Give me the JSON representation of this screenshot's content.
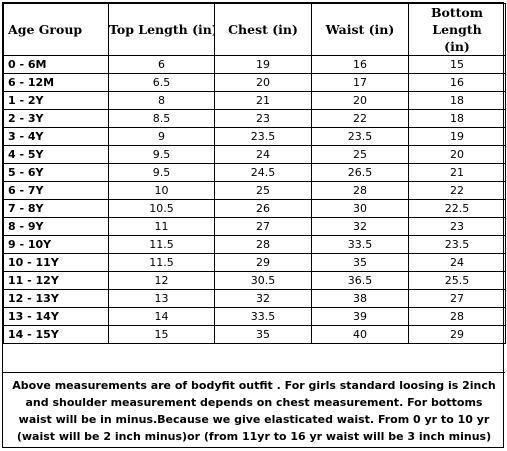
{
  "table": {
    "columns": [
      "Age Group",
      "Top Length (in)",
      "Chest (in)",
      "Waist (in)",
      "Bottom Length (in)"
    ],
    "rows": [
      [
        "0 - 6M",
        "6",
        "19",
        "16",
        "15"
      ],
      [
        "6 - 12M",
        "6.5",
        "20",
        "17",
        "16"
      ],
      [
        "1 - 2Y",
        "8",
        "21",
        "20",
        "18"
      ],
      [
        "2 - 3Y",
        "8.5",
        "23",
        "22",
        "18"
      ],
      [
        "3 - 4Y",
        "9",
        "23.5",
        "23.5",
        "19"
      ],
      [
        "4 - 5Y",
        "9.5",
        "24",
        "25",
        "20"
      ],
      [
        "5 - 6Y",
        "9.5",
        "24.5",
        "26.5",
        "21"
      ],
      [
        "6 - 7Y",
        "10",
        "25",
        "28",
        "22"
      ],
      [
        "7 - 8Y",
        "10.5",
        "26",
        "30",
        "22.5"
      ],
      [
        "8 - 9Y",
        "11",
        "27",
        "32",
        "23"
      ],
      [
        "9 - 10Y",
        "11.5",
        "28",
        "33.5",
        "23.5"
      ],
      [
        "10 - 11Y",
        "11.5",
        "29",
        "35",
        "24"
      ],
      [
        "11 - 12Y",
        "12",
        "30.5",
        "36.5",
        "25.5"
      ],
      [
        "12 - 13Y",
        "13",
        "32",
        "38",
        "27"
      ],
      [
        "13 - 14Y",
        "14",
        "33.5",
        "39",
        "28"
      ],
      [
        "14 - 15Y",
        "15",
        "35",
        "40",
        "29"
      ]
    ]
  },
  "note": "Above measurements are of bodyfit outfit . For girls standard loosing is 2inch and shoulder measurement depends on chest measurement. For bottoms waist will be in minus.Because we give elasticated waist. From 0 yr to 10 yr (waist will be 2 inch minus)or (from 11yr to 16 yr waist will be 3 inch minus)"
}
